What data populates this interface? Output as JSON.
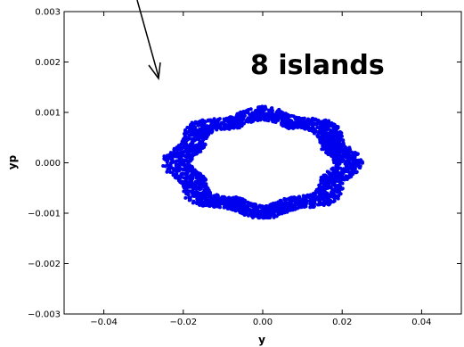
{
  "chart_data": {
    "type": "scatter",
    "title": "",
    "xlabel": "y",
    "ylabel": "yp",
    "xlim": [
      -0.05,
      0.05
    ],
    "ylim": [
      -0.003,
      0.003
    ],
    "x_ticks": [
      -0.04,
      -0.02,
      0.0,
      0.02,
      0.04
    ],
    "x_tick_labels": [
      "−0.04",
      "−0.02",
      "0.00",
      "0.02",
      "0.04"
    ],
    "y_ticks": [
      -0.003,
      -0.002,
      -0.001,
      0.0,
      0.001,
      0.002,
      0.003
    ],
    "y_tick_labels": [
      "−0.003",
      "−0.002",
      "−0.001",
      "0.000",
      "0.001",
      "0.002",
      "0.003"
    ],
    "grid": false,
    "legend": "none",
    "annotation": "8 islands",
    "marker_color": "#0000ee",
    "series": [
      {
        "shape": "ring with 8 islands",
        "center": [
          0.0,
          0.0
        ],
        "outer_semi_axes": [
          0.024,
          0.00105
        ],
        "inner_semi_axes": [
          0.017,
          0.0008
        ],
        "islands": 8
      }
    ]
  }
}
